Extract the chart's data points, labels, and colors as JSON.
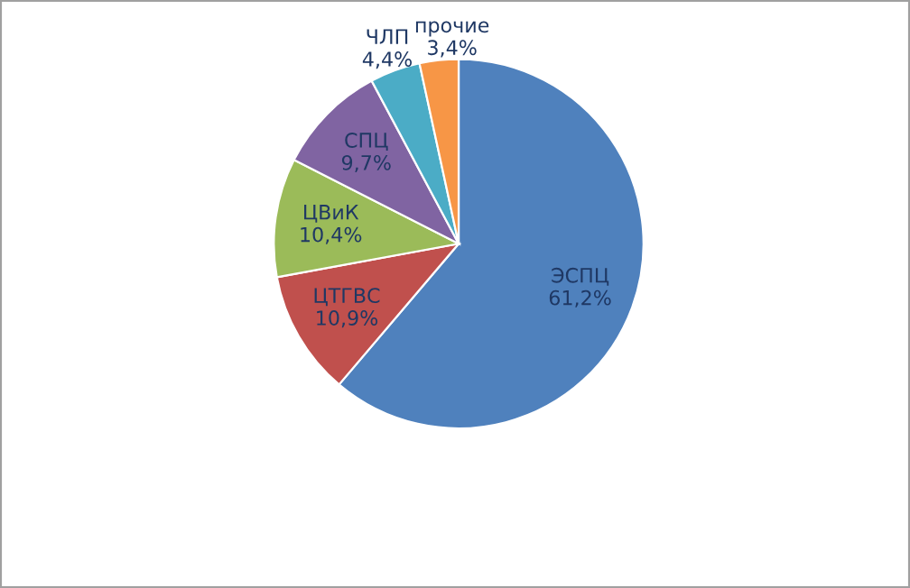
{
  "chart_data": {
    "type": "pie",
    "categories": [
      "ЭСПЦ",
      "ЦТГВС",
      "ЦВиК",
      "СПЦ",
      "ЧЛП",
      "прочие"
    ],
    "values": [
      61.2,
      10.9,
      10.4,
      9.7,
      4.4,
      3.4
    ],
    "value_labels": [
      "61,2%",
      "10,9%",
      "10,4%",
      "9,7%",
      "4,4%",
      "3,4%"
    ],
    "colors": [
      "#4f81bd",
      "#c0504d",
      "#9bbb59",
      "#8064a2",
      "#4bacc6",
      "#f79646"
    ],
    "legend": false
  }
}
